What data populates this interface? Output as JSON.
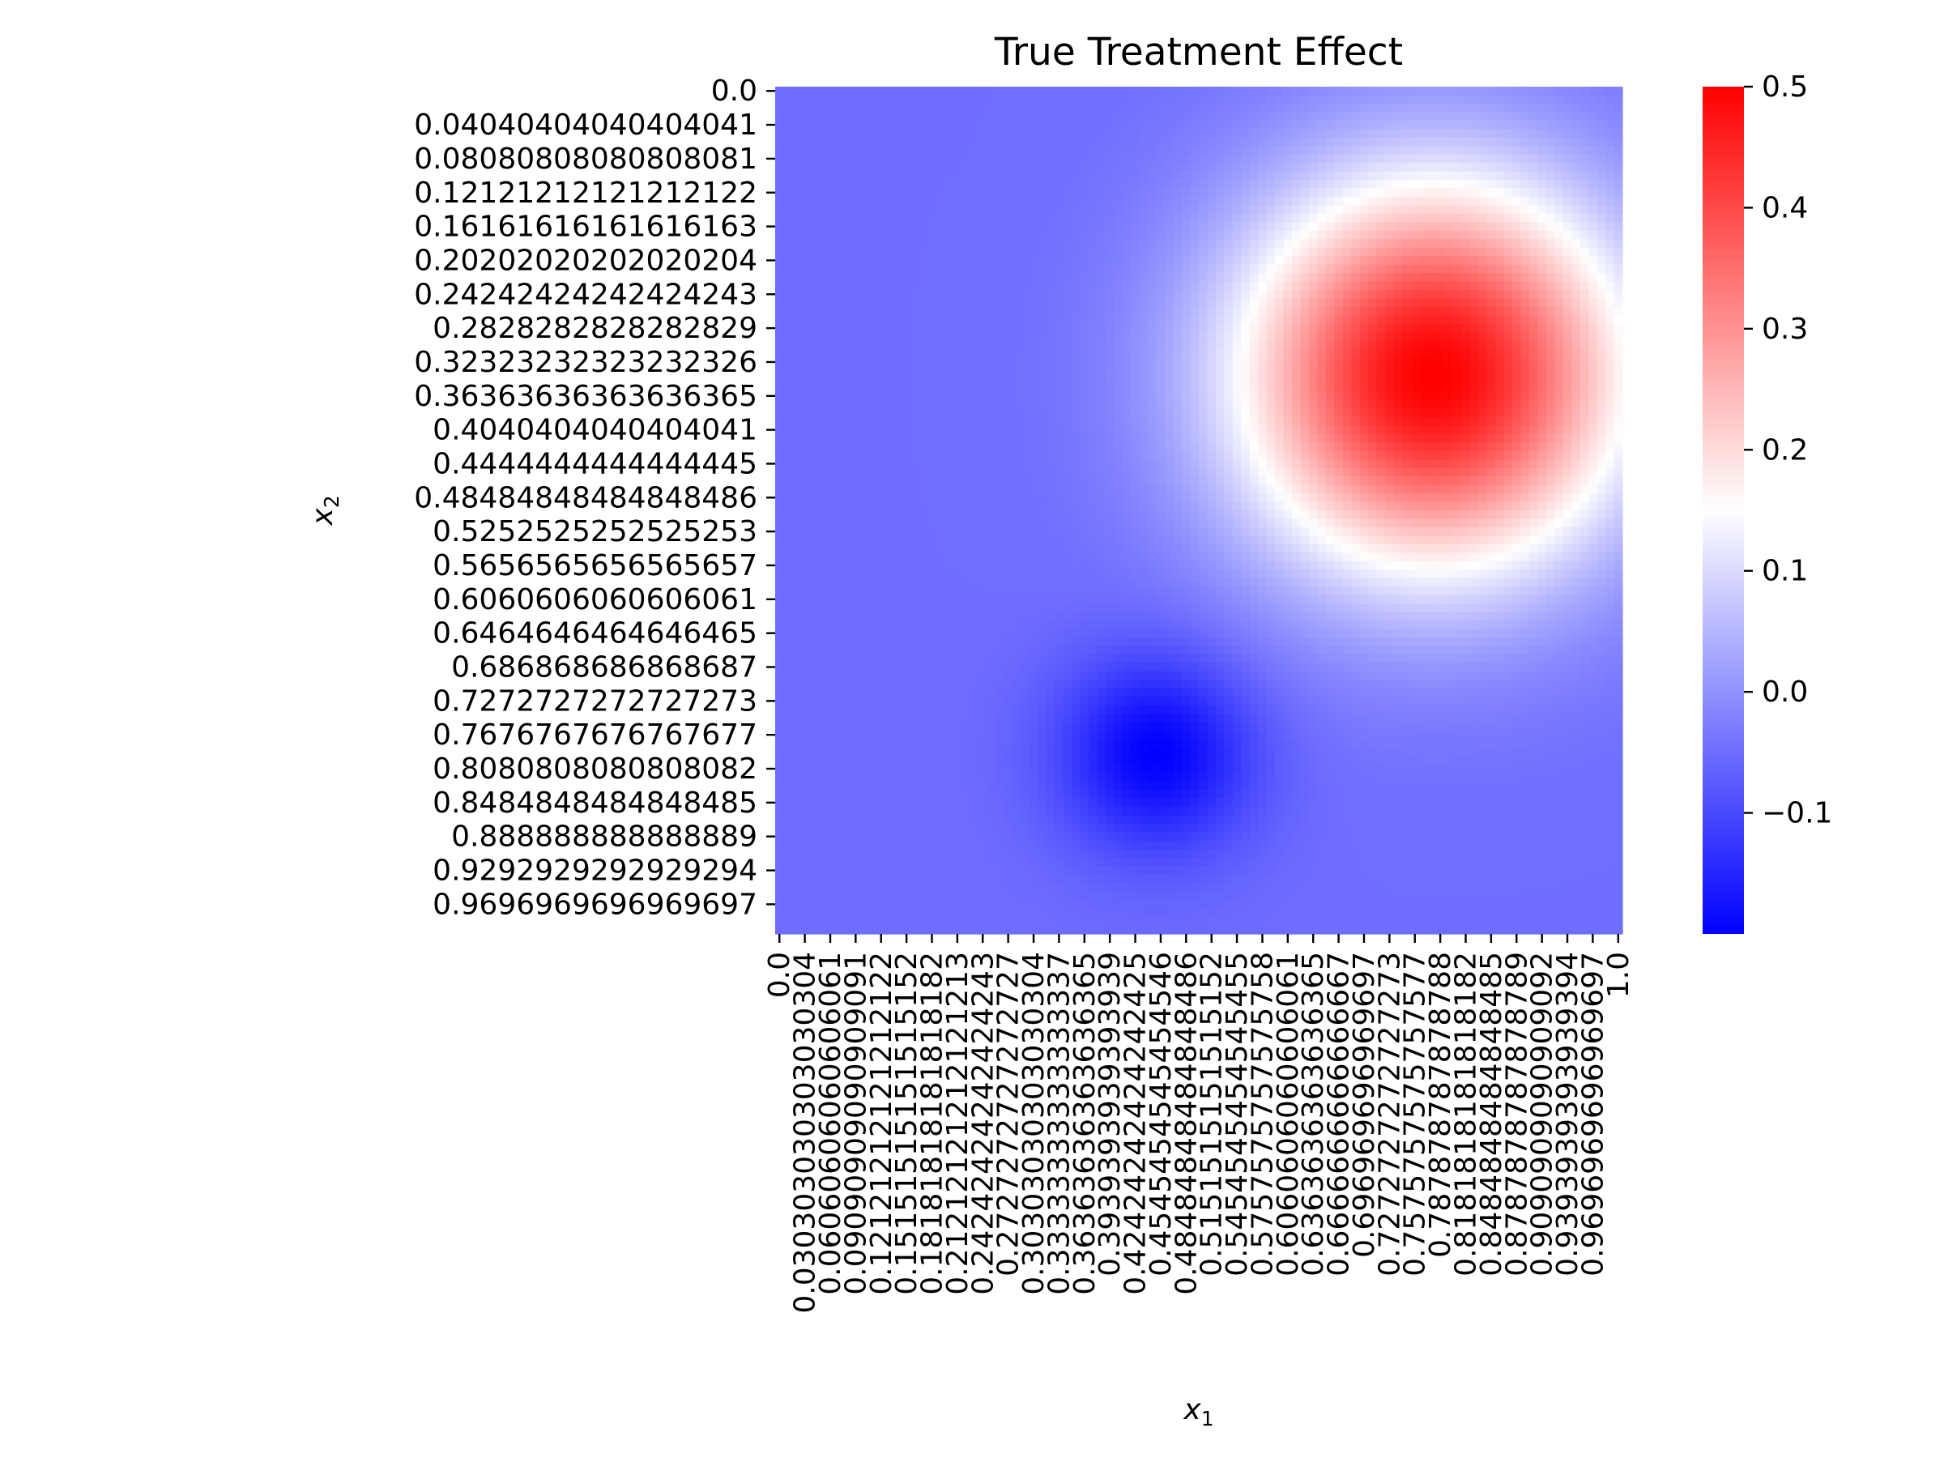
{
  "chart_data": {
    "type": "heatmap",
    "title": "True Treatment Effect",
    "xlabel": "x",
    "xlabel_sub": "1",
    "ylabel": "x",
    "ylabel_sub": "2",
    "x_ticklabels": [
      "0.0",
      "0.030303030303030304",
      "0.06060606060606061",
      "0.09090909090909091",
      "0.12121212121212122",
      "0.15151515151515152",
      "0.18181818181818182",
      "0.21212121212121213",
      "0.24242424242424243",
      "0.2727272727272727",
      "0.30303030303030304",
      "0.33333333333333337",
      "0.36363636363636365",
      "0.3939393939393939",
      "0.42424242424242425",
      "0.4545454545454546",
      "0.48484848484848486",
      "0.5151515151515152",
      "0.5454545454545455",
      "0.5757575757575758",
      "0.6060606060606061",
      "0.6363636363636365",
      "0.6666666666666667",
      "0.696969696969697",
      "0.7272727272727273",
      "0.7575757575757577",
      "0.787878787878788",
      "0.8181818181818182",
      "0.8484848484848485",
      "0.8787878787878789",
      "0.9090909090909092",
      "0.9393939393939394",
      "0.9696969696969697",
      "1.0"
    ],
    "y_ticklabels": [
      "0.0",
      "0.04040404040404041",
      "0.08080808080808081",
      "0.12121212121212122",
      "0.16161616161616163",
      "0.20202020202020204",
      "0.24242424242424243",
      "0.2828282828282829",
      "0.32323232323232326",
      "0.36363636363636365",
      "0.4040404040404041",
      "0.4444444444444445",
      "0.48484848484848486",
      "0.5252525252525253",
      "0.5656565656565657",
      "0.6060606060606061",
      "0.6464646464646465",
      "0.686868686868687",
      "0.7272727272727273",
      "0.7676767676767677",
      "0.8080808080808082",
      "0.8484848484848485",
      "0.888888888888889",
      "0.9292929292929294",
      "0.9696969696969697"
    ],
    "grid_size": [
      100,
      100
    ],
    "x_range": [
      0,
      1
    ],
    "y_range": [
      0,
      1
    ],
    "y_direction": "top-to-bottom",
    "field": {
      "baseline": -0.05,
      "positive_bump": {
        "center": [
          0.78,
          0.34
        ],
        "peak": 0.5,
        "radius": 0.24
      },
      "negative_bump": {
        "center": [
          0.45,
          0.79
        ],
        "trough": -0.2,
        "radius": 0.12
      }
    },
    "colorbar": {
      "min": -0.2,
      "max": 0.5,
      "center": 0.15,
      "ticks": [
        -0.1,
        0.0,
        0.1,
        0.2,
        0.3,
        0.4,
        0.5
      ],
      "tick_labels": [
        "−0.1",
        "0.0",
        "0.1",
        "0.2",
        "0.3",
        "0.4",
        "0.5"
      ],
      "colors": {
        "low": "#0000ff",
        "mid": "#ffffff",
        "high": "#ff0000"
      }
    },
    "grid": false,
    "legend": "colorbar-right"
  }
}
